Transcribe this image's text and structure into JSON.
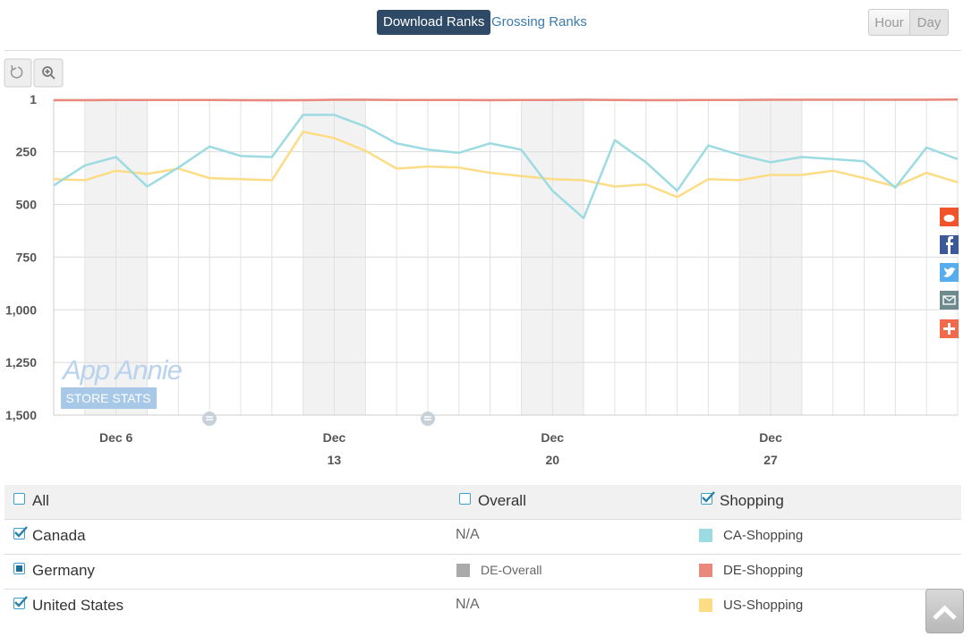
{
  "tabs": {
    "items": [
      "Download Ranks",
      "Grossing Ranks"
    ],
    "active": 0
  },
  "granularity": {
    "items": [
      "Hour",
      "Day"
    ],
    "active": 1
  },
  "watermark": {
    "title": "App Annie",
    "subtitle": "STORE STATS"
  },
  "chart_data": {
    "type": "line",
    "categories": [
      null,
      null,
      "Dec 6",
      null,
      null,
      null,
      null,
      null,
      null,
      "Dec\n13",
      null,
      null,
      null,
      null,
      null,
      null,
      "Dec\n20",
      null,
      null,
      null,
      null,
      null,
      null,
      "Dec\n27",
      null,
      null,
      null,
      null,
      null,
      null
    ],
    "series": [
      {
        "name": "CA-Shopping",
        "color": "#9ddbe2",
        "values": [
          410,
          315,
          275,
          415,
          325,
          225,
          270,
          275,
          75,
          75,
          130,
          210,
          240,
          255,
          210,
          240,
          435,
          565,
          195,
          300,
          435,
          220,
          265,
          300,
          275,
          285,
          295,
          420,
          230,
          285
        ]
      },
      {
        "name": "DE-Shopping",
        "color": "#e8897b",
        "values": [
          5,
          5,
          4,
          4,
          4,
          4,
          5,
          6,
          5,
          3,
          3,
          4,
          4,
          4,
          5,
          4,
          4,
          3,
          4,
          5,
          5,
          4,
          4,
          3,
          3,
          3,
          3,
          3,
          3,
          2
        ]
      },
      {
        "name": "US-Shopping",
        "color": "#fddc86",
        "values": [
          380,
          385,
          340,
          355,
          330,
          375,
          380,
          385,
          155,
          185,
          245,
          330,
          320,
          325,
          350,
          365,
          380,
          385,
          415,
          405,
          465,
          380,
          385,
          360,
          360,
          340,
          375,
          415,
          350,
          395
        ]
      }
    ],
    "ylim": [
      1,
      1500
    ],
    "inverted": true,
    "yticks": [
      1,
      250,
      500,
      750,
      {
        "value": 1000,
        "label": "1,000"
      },
      {
        "value": 1250,
        "label": "1,250"
      },
      {
        "value": 1500,
        "label": "1,500"
      }
    ],
    "grid": true
  },
  "filters": {
    "header": [
      {
        "label": "All",
        "checked": false
      },
      {
        "label": "Overall",
        "checked": false
      },
      {
        "label": "Shopping",
        "checked": true
      }
    ],
    "rows": [
      {
        "country": "Canada",
        "checked": true,
        "overall": "N/A"
      },
      {
        "country": "Germany",
        "checked": "partial",
        "overall": "DE-Overall",
        "overall_color": "#aaaaaa"
      },
      {
        "country": "United States",
        "checked": true,
        "overall": "N/A"
      }
    ]
  }
}
